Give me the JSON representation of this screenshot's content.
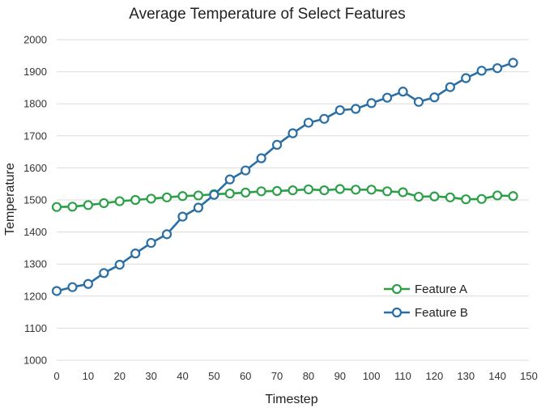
{
  "chart_data": {
    "type": "line",
    "title": "Average Temperature of Select Features",
    "xlabel": "Timestep",
    "ylabel": "Temperature",
    "xlim": [
      0,
      150
    ],
    "ylim": [
      1000,
      2000
    ],
    "xticks": [
      0,
      10,
      20,
      30,
      40,
      50,
      60,
      70,
      80,
      90,
      100,
      110,
      120,
      130,
      140,
      150
    ],
    "yticks": [
      1000,
      1100,
      1200,
      1300,
      1400,
      1500,
      1600,
      1700,
      1800,
      1900,
      2000
    ],
    "grid": "horizontal",
    "legend_position": "bottom-right",
    "x": [
      0,
      5,
      10,
      15,
      20,
      25,
      30,
      35,
      40,
      45,
      50,
      55,
      60,
      65,
      70,
      75,
      80,
      85,
      90,
      95,
      100,
      105,
      110,
      115,
      120,
      125,
      130,
      135,
      140,
      145
    ],
    "series": [
      {
        "name": "Feature A",
        "color": "#2ca048",
        "values": [
          1478,
          1479,
          1484,
          1490,
          1496,
          1500,
          1504,
          1508,
          1512,
          1514,
          1518,
          1520,
          1523,
          1527,
          1528,
          1530,
          1533,
          1530,
          1534,
          1532,
          1532,
          1527,
          1524,
          1510,
          1511,
          1508,
          1502,
          1503,
          1514,
          1512
        ]
      },
      {
        "name": "Feature B",
        "color": "#2a6ea6",
        "values": [
          1216,
          1228,
          1238,
          1272,
          1298,
          1333,
          1366,
          1393,
          1448,
          1476,
          1516,
          1564,
          1592,
          1630,
          1672,
          1708,
          1741,
          1753,
          1780,
          1784,
          1802,
          1819,
          1838,
          1806,
          1820,
          1852,
          1880,
          1903,
          1911,
          1928
        ]
      }
    ]
  }
}
